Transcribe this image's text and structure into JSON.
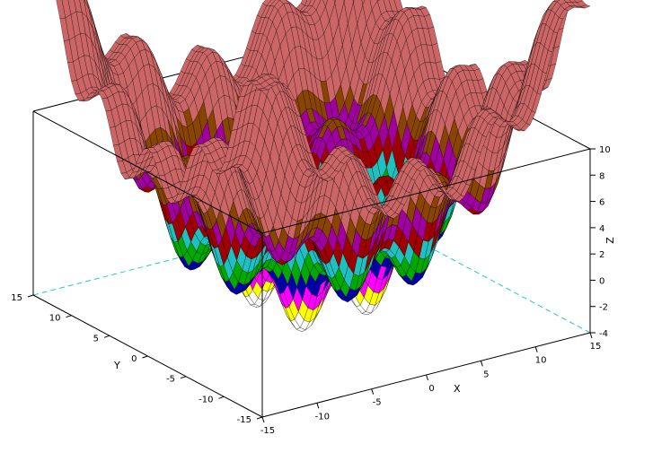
{
  "chart_data": {
    "type": "surface",
    "title": "",
    "xlabel": "X",
    "ylabel": "Y",
    "zlabel": "Z",
    "xlim": [
      -15,
      15
    ],
    "ylim": [
      -15,
      15
    ],
    "zlim": [
      -4,
      10
    ],
    "x_ticks": [
      "-15",
      "-10",
      "-5",
      "0",
      "5",
      "10",
      "15"
    ],
    "y_ticks": [
      "-15",
      "-10",
      "-5",
      "0",
      "5",
      "10",
      "15"
    ],
    "z_ticks": [
      "-4",
      "-2",
      "0",
      "2",
      "4",
      "6",
      "8",
      "10"
    ],
    "colormap": [
      "#ffffff",
      "#ffff00",
      "#ff00ff",
      "#0000aa",
      "#00aa00",
      "#20c0c0",
      "#a00000",
      "#a000a0",
      "#884400",
      "#cc6666"
    ],
    "grid_lines": false
  }
}
